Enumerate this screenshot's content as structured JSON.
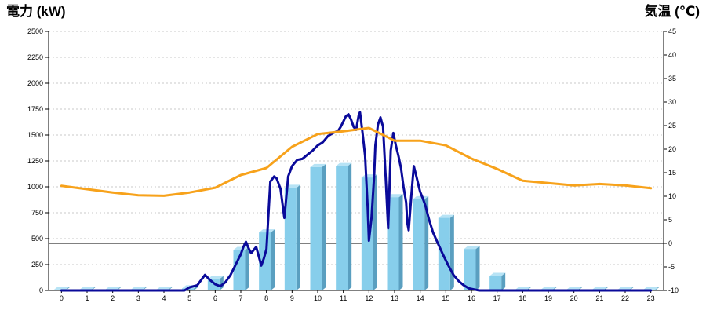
{
  "chart_data": {
    "type": "bar",
    "titles": {
      "left": "電力 (kW)",
      "right": "気温 (℃)"
    },
    "colors": {
      "left_title": "#2b5b9b",
      "right_title": "#f08c1c",
      "bar_front": "#87ceeb",
      "bar_side": "#5a9fc0",
      "bar_top": "#b7e3f5",
      "power_line": "#0a0a9a",
      "temp_line": "#f7a21b",
      "grid": "#c8c8c8",
      "zero_line": "#000000"
    },
    "x_ticks": [
      "0",
      "1",
      "2",
      "3",
      "4",
      "5",
      "6",
      "7",
      "8",
      "9",
      "10",
      "11",
      "12",
      "13",
      "14",
      "15",
      "16",
      "17",
      "18",
      "19",
      "20",
      "21",
      "22",
      "23"
    ],
    "y_left": {
      "min": 0,
      "max": 2500,
      "ticks": [
        "0",
        "250",
        "500",
        "750",
        "1000",
        "1250",
        "1500",
        "1750",
        "2000",
        "2250",
        "2500"
      ]
    },
    "y_right": {
      "min": -10,
      "max": 45,
      "ticks": [
        "-10",
        "-5",
        "0",
        "5",
        "10",
        "15",
        "20",
        "25",
        "30",
        "35",
        "40",
        "45"
      ]
    },
    "grid": true,
    "series": [
      {
        "kind": "bar",
        "axis": "left",
        "x": [
          0,
          1,
          2,
          3,
          4,
          5,
          6,
          7,
          8,
          9,
          10,
          11,
          12,
          13,
          14,
          15,
          16,
          17,
          18,
          19,
          20,
          21,
          22,
          23
        ],
        "values": [
          0,
          0,
          0,
          0,
          0,
          20,
          110,
          390,
          560,
          990,
          1190,
          1200,
          1090,
          900,
          880,
          700,
          400,
          140,
          0,
          0,
          0,
          0,
          0,
          0
        ]
      },
      {
        "kind": "line",
        "axis": "left",
        "x": [
          0,
          1,
          2,
          3,
          4,
          4.8,
          5,
          5.3,
          5.6,
          5.8,
          6,
          6.2,
          6.4,
          6.6,
          6.8,
          7,
          7.1,
          7.2,
          7.3,
          7.4,
          7.6,
          7.8,
          7.9,
          8,
          8.15,
          8.3,
          8.4,
          8.55,
          8.7,
          8.85,
          9,
          9.2,
          9.4,
          9.6,
          9.8,
          10,
          10.2,
          10.4,
          10.6,
          10.8,
          10.9,
          11,
          11.1,
          11.2,
          11.3,
          11.4,
          11.5,
          11.6,
          11.65,
          11.75,
          11.85,
          11.95,
          12,
          12.1,
          12.2,
          12.25,
          12.35,
          12.45,
          12.55,
          12.65,
          12.75,
          12.85,
          12.95,
          13.05,
          13.15,
          13.25,
          13.35,
          13.45,
          13.5,
          13.55,
          13.65,
          13.75,
          13.85,
          13.95,
          14,
          14.1,
          14.2,
          14.35,
          14.5,
          14.7,
          14.9,
          15.1,
          15.3,
          15.5,
          15.7,
          15.9,
          16.1,
          16.3,
          16.5,
          16.7,
          16.9,
          17.1,
          17.3,
          17.5,
          17.7,
          18,
          19,
          20,
          21,
          22,
          23
        ],
        "values": [
          0,
          0,
          0,
          0,
          0,
          0,
          30,
          50,
          150,
          100,
          60,
          40,
          80,
          150,
          250,
          350,
          420,
          470,
          410,
          360,
          420,
          240,
          310,
          400,
          1050,
          1100,
          1080,
          980,
          700,
          1100,
          1200,
          1260,
          1270,
          1310,
          1350,
          1400,
          1430,
          1490,
          1520,
          1540,
          1580,
          1630,
          1680,
          1700,
          1650,
          1580,
          1550,
          1690,
          1720,
          1520,
          1300,
          800,
          480,
          700,
          1100,
          1400,
          1600,
          1670,
          1580,
          1100,
          600,
          1350,
          1520,
          1400,
          1300,
          1180,
          1000,
          850,
          650,
          580,
          900,
          1200,
          1100,
          1000,
          950,
          890,
          820,
          680,
          560,
          450,
          340,
          240,
          150,
          90,
          50,
          20,
          10,
          0,
          0,
          0,
          0,
          0,
          0,
          0,
          0,
          0,
          0,
          0,
          0,
          0,
          0
        ],
        "note_x_is_hour": true
      },
      {
        "kind": "line",
        "axis": "right",
        "x": [
          0,
          1,
          2,
          3,
          4,
          5,
          6,
          7,
          8,
          9,
          10,
          11,
          12,
          13,
          14,
          15,
          16,
          17,
          18,
          19,
          20,
          21,
          22,
          23
        ],
        "values": [
          12.2,
          11.5,
          10.8,
          10.2,
          10.1,
          10.8,
          11.8,
          14.5,
          16.0,
          20.5,
          23.2,
          23.8,
          24.5,
          21.8,
          21.8,
          20.8,
          18.0,
          15.8,
          13.3,
          12.8,
          12.3,
          12.6,
          12.3,
          11.7
        ]
      }
    ]
  }
}
